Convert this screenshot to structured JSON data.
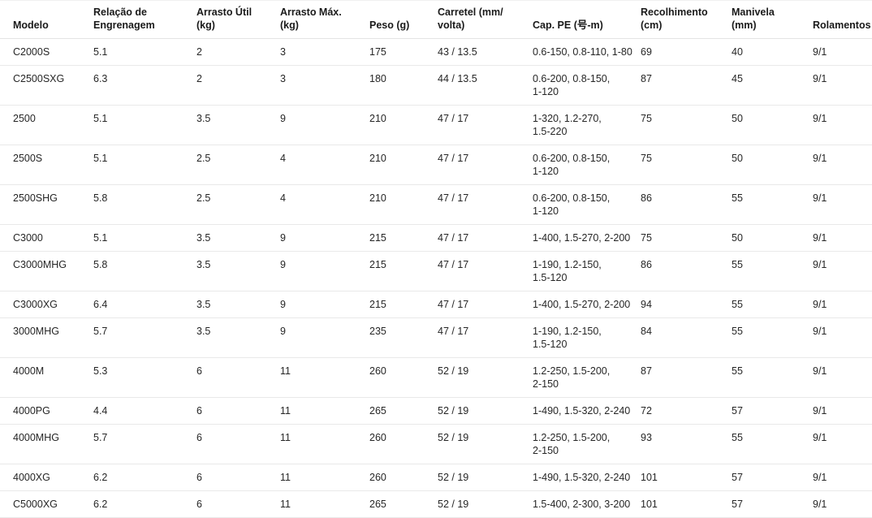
{
  "table": {
    "columns": [
      {
        "key": "modelo",
        "label": "Modelo"
      },
      {
        "key": "relacao",
        "label": "Relação de\nEngrenagem"
      },
      {
        "key": "arrasto_util",
        "label": "Arrasto Útil\n(kg)"
      },
      {
        "key": "arrasto_max",
        "label": "Arrasto Máx.\n(kg)"
      },
      {
        "key": "peso",
        "label": "Peso (g)"
      },
      {
        "key": "carretel",
        "label": "Carretel (mm/\nvolta)"
      },
      {
        "key": "cap_pe",
        "label": "Cap. PE (号-m)"
      },
      {
        "key": "recolhimento",
        "label": "Recolhimento\n(cm)"
      },
      {
        "key": "manivela",
        "label": "Manivela\n(mm)"
      },
      {
        "key": "rolamentos",
        "label": "Rolamentos"
      }
    ],
    "rows": [
      [
        "C2000S",
        "5.1",
        "2",
        "3",
        "175",
        "43 / 13.5",
        "0.6-150, 0.8-110, 1-80",
        "69",
        "40",
        "9/1"
      ],
      [
        "C2500SXG",
        "6.3",
        "2",
        "3",
        "180",
        "44 / 13.5",
        "0.6-200, 0.8-150,\n1-120",
        "87",
        "45",
        "9/1"
      ],
      [
        "2500",
        "5.1",
        "3.5",
        "9",
        "210",
        "47 / 17",
        "1-320, 1.2-270,\n1.5-220",
        "75",
        "50",
        "9/1"
      ],
      [
        "2500S",
        "5.1",
        "2.5",
        "4",
        "210",
        "47 / 17",
        "0.6-200, 0.8-150,\n1-120",
        "75",
        "50",
        "9/1"
      ],
      [
        "2500SHG",
        "5.8",
        "2.5",
        "4",
        "210",
        "47 / 17",
        "0.6-200, 0.8-150,\n1-120",
        "86",
        "55",
        "9/1"
      ],
      [
        "C3000",
        "5.1",
        "3.5",
        "9",
        "215",
        "47 / 17",
        "1-400, 1.5-270, 2-200",
        "75",
        "50",
        "9/1"
      ],
      [
        "C3000MHG",
        "5.8",
        "3.5",
        "9",
        "215",
        "47 / 17",
        "1-190, 1.2-150,\n1.5-120",
        "86",
        "55",
        "9/1"
      ],
      [
        "C3000XG",
        "6.4",
        "3.5",
        "9",
        "215",
        "47 / 17",
        "1-400, 1.5-270, 2-200",
        "94",
        "55",
        "9/1"
      ],
      [
        "3000MHG",
        "5.7",
        "3.5",
        "9",
        "235",
        "47 / 17",
        "1-190, 1.2-150,\n1.5-120",
        "84",
        "55",
        "9/1"
      ],
      [
        "4000M",
        "5.3",
        "6",
        "11",
        "260",
        "52 / 19",
        "1.2-250, 1.5-200,\n2-150",
        "87",
        "55",
        "9/1"
      ],
      [
        "4000PG",
        "4.4",
        "6",
        "11",
        "265",
        "52 / 19",
        "1-490, 1.5-320, 2-240",
        "72",
        "57",
        "9/1"
      ],
      [
        "4000MHG",
        "5.7",
        "6",
        "11",
        "260",
        "52 / 19",
        "1.2-250, 1.5-200,\n2-150",
        "93",
        "55",
        "9/1"
      ],
      [
        "4000XG",
        "6.2",
        "6",
        "11",
        "260",
        "52 / 19",
        "1-490, 1.5-320, 2-240",
        "101",
        "57",
        "9/1"
      ],
      [
        "C5000XG",
        "6.2",
        "6",
        "11",
        "265",
        "52 / 19",
        "1.5-400, 2-300, 3-200",
        "101",
        "57",
        "9/1"
      ]
    ]
  },
  "colors": {
    "background": "#ffffff",
    "header_text": "#1a1a1a",
    "body_text": "#262626",
    "divider": "#e9e9e9"
  }
}
